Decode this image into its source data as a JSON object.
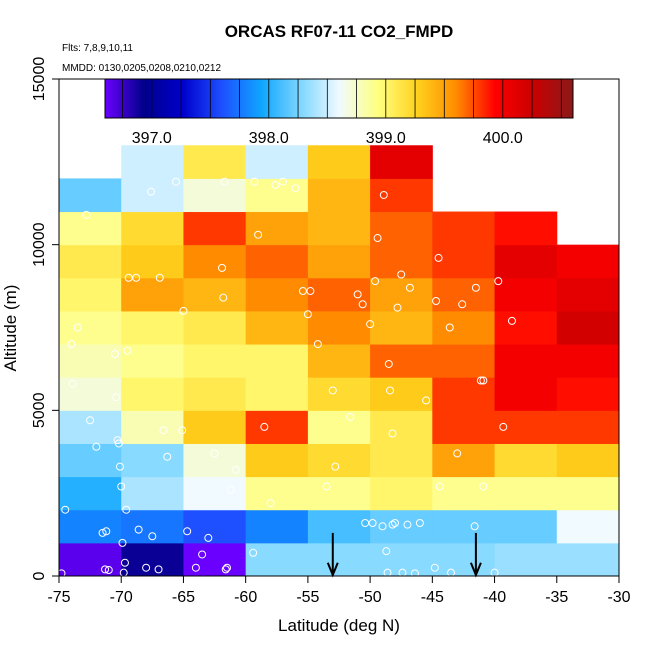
{
  "chart_data": {
    "type": "heatmap",
    "title": "ORCAS RF07-11 CO2_FMPD",
    "flights_note": "Flts: 7,8,9,10,11",
    "dates_note": "MMDD: 0130,0205,0208,0210,0212",
    "xlabel": "Latitude (deg N)",
    "ylabel": "Altitude (m)",
    "xlim": [
      -75,
      -30
    ],
    "ylim": [
      0,
      15000
    ],
    "x_ticks": [
      -75,
      -70,
      -65,
      -60,
      -55,
      -50,
      -45,
      -40,
      -35,
      -30
    ],
    "x_tick_labels": [
      "-75",
      "-70",
      "-65",
      "-60",
      "-55",
      "-50",
      "-45",
      "-40",
      "-35",
      "-30"
    ],
    "y_ticks": [
      0,
      5000,
      10000,
      15000
    ],
    "y_tick_labels": [
      "0",
      "5000",
      "10000",
      "15000"
    ],
    "colorbar": {
      "range": [
        396.6,
        400.6
      ],
      "ticks": [
        397.0,
        398.0,
        399.0,
        400.0
      ],
      "tick_labels": [
        "397.0",
        "398.0",
        "399.0",
        "400.0"
      ],
      "colors": [
        "#6a00ff",
        "#00008a",
        "#0000cd",
        "#1e50ff",
        "#0ea5ff",
        "#7dd6ff",
        "#f0faff",
        "#ffff80",
        "#ffd21e",
        "#ff8c00",
        "#ff0000",
        "#c80000",
        "#8a1a1a"
      ]
    },
    "cell_width_deg": 5,
    "cell_height_m": 1000,
    "columns": [
      {
        "x0": -75,
        "values": [
          396.65,
          397.8,
          398.0,
          398.2,
          398.4,
          398.7,
          398.8,
          398.9,
          399.0,
          399.1,
          398.9,
          398.2
        ]
      },
      {
        "x0": -70,
        "values": [
          396.9,
          397.75,
          398.4,
          398.3,
          398.8,
          399.0,
          398.9,
          399.0,
          399.5,
          399.3,
          399.2,
          398.5,
          398.5
        ]
      },
      {
        "x0": -65,
        "values": [
          396.6,
          397.6,
          398.6,
          398.7,
          399.3,
          399.1,
          399.0,
          399.1,
          399.4,
          399.6,
          399.8,
          398.7,
          399.1
        ]
      },
      {
        "x0": -60,
        "values": [
          398.3,
          397.8,
          398.9,
          399.3,
          399.8,
          399.0,
          399.0,
          399.4,
          399.6,
          399.7,
          399.5,
          398.9,
          398.5
        ]
      },
      {
        "x0": -55,
        "values": [
          398.3,
          398.1,
          398.9,
          399.2,
          398.9,
          399.2,
          399.4,
          399.6,
          399.7,
          399.5,
          399.4,
          399.4,
          399.3
        ]
      },
      {
        "x0": -50,
        "values": [
          398.3,
          398.2,
          399.0,
          399.1,
          399.1,
          399.3,
          399.7,
          399.4,
          399.5,
          399.7,
          399.7,
          399.8,
          400.1
        ]
      },
      {
        "x0": -45,
        "values": [
          398.3,
          398.2,
          398.9,
          399.5,
          399.8,
          399.8,
          399.7,
          399.6,
          399.7,
          399.8,
          399.8
        ]
      },
      {
        "x0": -40,
        "values": [
          398.35,
          398.2,
          398.9,
          399.2,
          399.8,
          400.0,
          400.0,
          399.9,
          400.0,
          400.1,
          399.9
        ]
      },
      {
        "x0": -35,
        "values": [
          398.35,
          398.6,
          398.9,
          399.3,
          399.8,
          399.9,
          400.0,
          400.2,
          400.1,
          400.0
        ]
      }
    ],
    "samples": [
      [
        -74.8,
        80
      ],
      [
        -74.5,
        2000
      ],
      [
        -74.0,
        7000
      ],
      [
        -73.9,
        5800
      ],
      [
        -73.5,
        7500
      ],
      [
        -72.8,
        10900
      ],
      [
        -72.5,
        4700
      ],
      [
        -72.0,
        3900
      ],
      [
        -71.5,
        1300
      ],
      [
        -71.3,
        200
      ],
      [
        -71.0,
        180
      ],
      [
        -71.2,
        1350
      ],
      [
        -70.5,
        6700
      ],
      [
        -70.4,
        5400
      ],
      [
        -70.3,
        4100
      ],
      [
        -70.2,
        4000
      ],
      [
        -70.1,
        3300
      ],
      [
        -70.0,
        2700
      ],
      [
        -69.9,
        1000
      ],
      [
        -69.8,
        100
      ],
      [
        -69.7,
        400
      ],
      [
        -69.6,
        2000
      ],
      [
        -69.5,
        6800
      ],
      [
        -69.4,
        9000
      ],
      [
        -68.8,
        9000
      ],
      [
        -68.6,
        1400
      ],
      [
        -68.0,
        250
      ],
      [
        -67.6,
        11600
      ],
      [
        -67.5,
        1200
      ],
      [
        -67.0,
        200
      ],
      [
        -66.9,
        9000
      ],
      [
        -66.6,
        4400
      ],
      [
        -66.3,
        3600
      ],
      [
        -65.6,
        11900
      ],
      [
        -65.1,
        4400
      ],
      [
        -65.0,
        8000
      ],
      [
        -64.7,
        1350
      ],
      [
        -64.0,
        250
      ],
      [
        -63.5,
        650
      ],
      [
        -63.0,
        1150
      ],
      [
        -62.5,
        3700
      ],
      [
        -61.6,
        200
      ],
      [
        -61.5,
        250
      ],
      [
        -61.8,
        8400
      ],
      [
        -61.9,
        9300
      ],
      [
        -61.7,
        11900
      ],
      [
        -61.2,
        2600
      ],
      [
        -60.8,
        3200
      ],
      [
        -59.4,
        700
      ],
      [
        -59.3,
        11900
      ],
      [
        -59.0,
        10300
      ],
      [
        -58.5,
        4500
      ],
      [
        -58.0,
        2200
      ],
      [
        -57.6,
        11800
      ],
      [
        -57.0,
        11900
      ],
      [
        -56.0,
        11700
      ],
      [
        -55.4,
        8600
      ],
      [
        -55.0,
        7900
      ],
      [
        -54.8,
        8600
      ],
      [
        -54.2,
        7000
      ],
      [
        -53.5,
        2700
      ],
      [
        -53.0,
        5600
      ],
      [
        -52.8,
        3300
      ],
      [
        -51.6,
        4800
      ],
      [
        -51.0,
        8500
      ],
      [
        -50.6,
        8200
      ],
      [
        -50.4,
        1600
      ],
      [
        -50.0,
        7600
      ],
      [
        -49.8,
        1600
      ],
      [
        -49.6,
        8900
      ],
      [
        -49.4,
        10200
      ],
      [
        -49.0,
        1500
      ],
      [
        -48.9,
        11500
      ],
      [
        -48.7,
        750
      ],
      [
        -48.6,
        100
      ],
      [
        -48.2,
        1550
      ],
      [
        -48.2,
        4300
      ],
      [
        -48.4,
        5600
      ],
      [
        -48.5,
        6400
      ],
      [
        -48.0,
        1600
      ],
      [
        -47.8,
        8100
      ],
      [
        -47.5,
        9100
      ],
      [
        -47.4,
        100
      ],
      [
        -47.0,
        1550
      ],
      [
        -46.8,
        8700
      ],
      [
        -46.4,
        80
      ],
      [
        -46.0,
        1600
      ],
      [
        -45.5,
        5300
      ],
      [
        -44.8,
        250
      ],
      [
        -44.7,
        8300
      ],
      [
        -44.5,
        9600
      ],
      [
        -44.4,
        2700
      ],
      [
        -43.6,
        7500
      ],
      [
        -43.5,
        100
      ],
      [
        -43.0,
        3700
      ],
      [
        -42.6,
        8200
      ],
      [
        -41.6,
        1500
      ],
      [
        -41.5,
        8700
      ],
      [
        -41.1,
        5900
      ],
      [
        -40.9,
        5900
      ],
      [
        -40.9,
        2700
      ],
      [
        -40.0,
        100
      ],
      [
        -39.7,
        8900
      ],
      [
        -39.3,
        4500
      ],
      [
        -38.6,
        7700
      ]
    ],
    "arrows_x": [
      -53,
      -41.5
    ]
  }
}
